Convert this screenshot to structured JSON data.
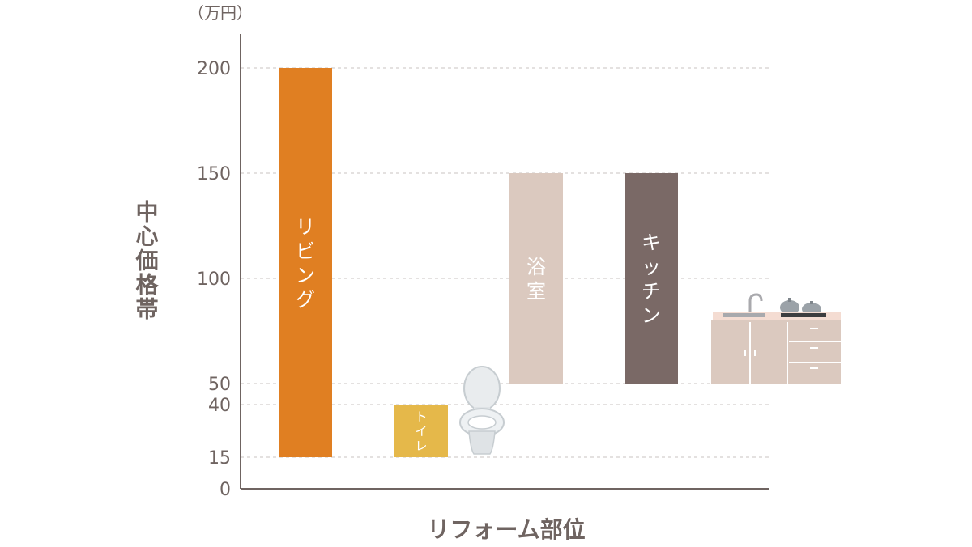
{
  "chart_data": {
    "type": "bar",
    "unit_label": "（万円）",
    "xlabel": "リフォーム部位",
    "ylabel": "中心価格帯",
    "y_ticks": [
      0,
      15,
      40,
      50,
      100,
      150,
      200
    ],
    "ylim": [
      0,
      215
    ],
    "grid": true,
    "legend": "none",
    "bars": [
      {
        "label": "リビング",
        "low": 15,
        "high": 200,
        "color": "#e07f22"
      },
      {
        "label": "トイレ",
        "low": 15,
        "high": 40,
        "color": "#e5b84a"
      },
      {
        "label": "浴室",
        "low": 50,
        "high": 150,
        "color": "#dbc9bf"
      },
      {
        "label": "キッチン",
        "low": 50,
        "high": 150,
        "color": "#7a6966"
      }
    ],
    "illustrations": [
      "toilet-illustration",
      "kitchen-illustration"
    ]
  }
}
